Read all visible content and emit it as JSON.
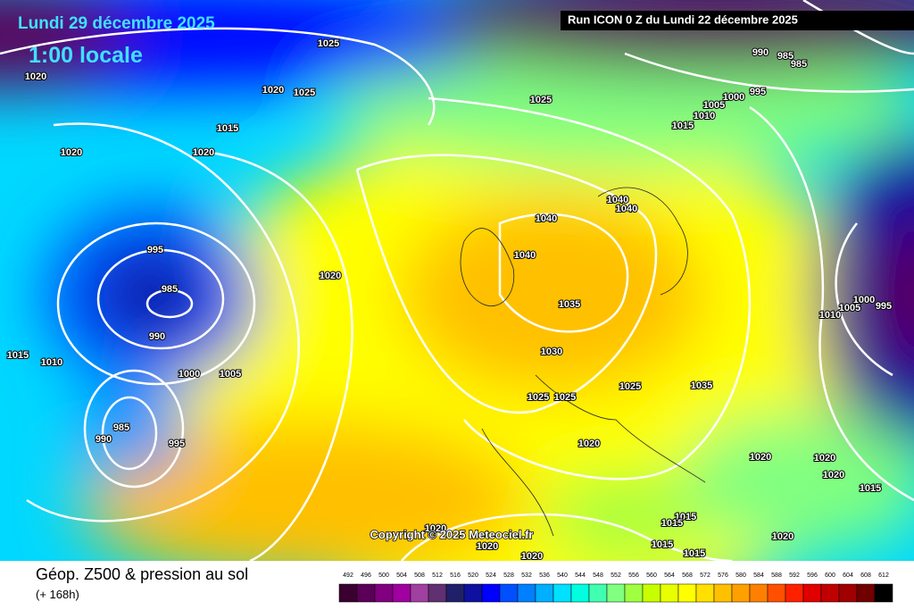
{
  "header": {
    "date": "Lundi 29 décembre 2025",
    "time": "1:00 locale",
    "run": "Run ICON 0 Z du Lundi 22 décembre 2025"
  },
  "isobar_labels": [
    "1020",
    "1025",
    "1020",
    "1025",
    "1015",
    "1020",
    "1020",
    "995",
    "985",
    "990",
    "1015",
    "1010",
    "1000",
    "1005",
    "985",
    "990",
    "995",
    "1020",
    "1025",
    "1005",
    "1010",
    "1015",
    "1000",
    "995",
    "990",
    "985",
    "985",
    "1040",
    "1040",
    "1040",
    "1040",
    "1035",
    "1030",
    "1025",
    "1035",
    "1025",
    "1025",
    "1020",
    "1020",
    "1020",
    "1020",
    "1015",
    "1000",
    "1005",
    "995",
    "1010",
    "1015",
    "1015",
    "1015",
    "1015",
    "1020",
    "1020",
    "1020",
    "1020"
  ],
  "copyright": "Copyright © 2025 Meteociel.fr",
  "legend": {
    "title": "Géop. Z500 & pression au sol",
    "subtitle": "(+ 168h)",
    "ticks": [
      492,
      496,
      500,
      504,
      508,
      512,
      516,
      520,
      524,
      528,
      532,
      536,
      540,
      544,
      548,
      552,
      556,
      560,
      564,
      568,
      572,
      576,
      580,
      584,
      588,
      592,
      596,
      600,
      604,
      608,
      612
    ],
    "colors": [
      "#3a0030",
      "#5a0058",
      "#80007f",
      "#a000a0",
      "#a040a0",
      "#603070",
      "#20206a",
      "#1010a0",
      "#0000ff",
      "#0050ff",
      "#0080ff",
      "#00b0ff",
      "#00e0ff",
      "#00ffe0",
      "#40ffb0",
      "#80ff80",
      "#a0ff40",
      "#c8ff00",
      "#e8ff00",
      "#ffff00",
      "#ffe000",
      "#ffc000",
      "#ffa000",
      "#ff8000",
      "#ff5000",
      "#ff2000",
      "#e00000",
      "#c00000",
      "#a00000",
      "#700000",
      "#000000"
    ]
  }
}
